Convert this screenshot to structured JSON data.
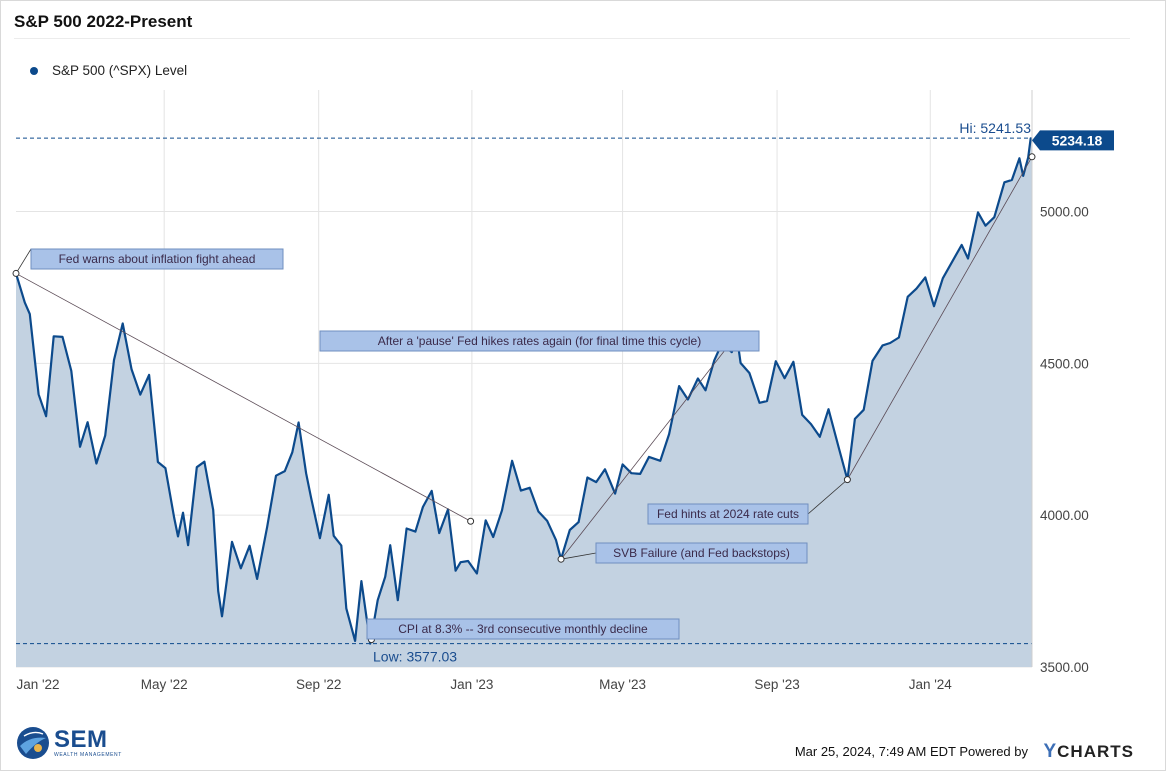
{
  "header": {
    "title": "S&P 500 2022-Present"
  },
  "legend": {
    "label": "S&P 500 (^SPX) Level",
    "color": "#0c4a8c"
  },
  "footer": {
    "timestamp": "Mar 25, 2024, 7:49 AM EDT Powered by",
    "brand_y": "Y",
    "brand_rest": "CHARTS"
  },
  "logo": {
    "name": "SEM",
    "tagline": "WEALTH MANAGEMENT"
  },
  "chart_data": {
    "type": "area",
    "x_start": "2022-01-03",
    "x_end": "2024-03-22",
    "ylim": [
      3500,
      5400
    ],
    "y_ticks": [
      3500,
      4000,
      4500,
      5000
    ],
    "y_tick_labels": [
      "3500.00",
      "4000.00",
      "4500.00",
      "5000.00"
    ],
    "x_ticks": [
      {
        "date": "2022-01-01",
        "label": "Jan '22"
      },
      {
        "date": "2022-05-01",
        "label": "May '22"
      },
      {
        "date": "2022-09-01",
        "label": "Sep '22"
      },
      {
        "date": "2023-01-01",
        "label": "Jan '23"
      },
      {
        "date": "2023-05-01",
        "label": "May '23"
      },
      {
        "date": "2023-09-01",
        "label": "Sep '23"
      },
      {
        "date": "2024-01-01",
        "label": "Jan '24"
      }
    ],
    "grid": true,
    "line_color": "#0c4a8c",
    "fill_color": "#c3d2e1",
    "series": [
      {
        "name": "S&P 500 (^SPX) Level",
        "points": [
          [
            "2022-01-03",
            4796
          ],
          [
            "2022-01-10",
            4700
          ],
          [
            "2022-01-14",
            4662
          ],
          [
            "2022-01-21",
            4398
          ],
          [
            "2022-01-27",
            4326
          ],
          [
            "2022-02-02",
            4589
          ],
          [
            "2022-02-09",
            4587
          ],
          [
            "2022-02-16",
            4475
          ],
          [
            "2022-02-23",
            4225
          ],
          [
            "2022-03-01",
            4306
          ],
          [
            "2022-03-08",
            4170
          ],
          [
            "2022-03-15",
            4262
          ],
          [
            "2022-03-22",
            4511
          ],
          [
            "2022-03-29",
            4631
          ],
          [
            "2022-04-05",
            4481
          ],
          [
            "2022-04-12",
            4397
          ],
          [
            "2022-04-19",
            4462
          ],
          [
            "2022-04-26",
            4175
          ],
          [
            "2022-05-02",
            4155
          ],
          [
            "2022-05-09",
            3991
          ],
          [
            "2022-05-12",
            3930
          ],
          [
            "2022-05-16",
            4008
          ],
          [
            "2022-05-20",
            3901
          ],
          [
            "2022-05-27",
            4158
          ],
          [
            "2022-06-02",
            4176
          ],
          [
            "2022-06-09",
            4017
          ],
          [
            "2022-06-13",
            3750
          ],
          [
            "2022-06-16",
            3667
          ],
          [
            "2022-06-24",
            3912
          ],
          [
            "2022-07-01",
            3825
          ],
          [
            "2022-07-08",
            3899
          ],
          [
            "2022-07-14",
            3790
          ],
          [
            "2022-07-22",
            3962
          ],
          [
            "2022-07-29",
            4130
          ],
          [
            "2022-08-05",
            4145
          ],
          [
            "2022-08-11",
            4207
          ],
          [
            "2022-08-16",
            4305
          ],
          [
            "2022-08-22",
            4138
          ],
          [
            "2022-08-26",
            4057
          ],
          [
            "2022-09-02",
            3924
          ],
          [
            "2022-09-09",
            4067
          ],
          [
            "2022-09-13",
            3932
          ],
          [
            "2022-09-19",
            3900
          ],
          [
            "2022-09-23",
            3693
          ],
          [
            "2022-09-30",
            3586
          ],
          [
            "2022-10-05",
            3783
          ],
          [
            "2022-10-12",
            3577
          ],
          [
            "2022-10-18",
            3720
          ],
          [
            "2022-10-24",
            3797
          ],
          [
            "2022-10-28",
            3901
          ],
          [
            "2022-11-03",
            3720
          ],
          [
            "2022-11-10",
            3956
          ],
          [
            "2022-11-17",
            3946
          ],
          [
            "2022-11-23",
            4027
          ],
          [
            "2022-11-30",
            4080
          ],
          [
            "2022-12-06",
            3941
          ],
          [
            "2022-12-13",
            4019
          ],
          [
            "2022-12-19",
            3817
          ],
          [
            "2022-12-23",
            3845
          ],
          [
            "2022-12-29",
            3849
          ],
          [
            "2023-01-05",
            3808
          ],
          [
            "2023-01-12",
            3983
          ],
          [
            "2023-01-18",
            3928
          ],
          [
            "2023-01-25",
            4016
          ],
          [
            "2023-02-02",
            4179
          ],
          [
            "2023-02-09",
            4081
          ],
          [
            "2023-02-16",
            4090
          ],
          [
            "2023-02-23",
            4012
          ],
          [
            "2023-03-02",
            3981
          ],
          [
            "2023-03-09",
            3918
          ],
          [
            "2023-03-13",
            3855
          ],
          [
            "2023-03-20",
            3951
          ],
          [
            "2023-03-27",
            3977
          ],
          [
            "2023-04-03",
            4124
          ],
          [
            "2023-04-10",
            4109
          ],
          [
            "2023-04-17",
            4151
          ],
          [
            "2023-04-25",
            4071
          ],
          [
            "2023-05-01",
            4167
          ],
          [
            "2023-05-08",
            4138
          ],
          [
            "2023-05-15",
            4136
          ],
          [
            "2023-05-22",
            4192
          ],
          [
            "2023-05-31",
            4179
          ],
          [
            "2023-06-07",
            4267
          ],
          [
            "2023-06-15",
            4425
          ],
          [
            "2023-06-22",
            4381
          ],
          [
            "2023-06-30",
            4450
          ],
          [
            "2023-07-06",
            4411
          ],
          [
            "2023-07-13",
            4510
          ],
          [
            "2023-07-19",
            4565
          ],
          [
            "2023-07-27",
            4537
          ],
          [
            "2023-07-31",
            4589
          ],
          [
            "2023-08-03",
            4501
          ],
          [
            "2023-08-10",
            4468
          ],
          [
            "2023-08-18",
            4370
          ],
          [
            "2023-08-24",
            4376
          ],
          [
            "2023-08-31",
            4507
          ],
          [
            "2023-09-07",
            4451
          ],
          [
            "2023-09-14",
            4505
          ],
          [
            "2023-09-21",
            4330
          ],
          [
            "2023-09-28",
            4300
          ],
          [
            "2023-10-05",
            4258
          ],
          [
            "2023-10-12",
            4349
          ],
          [
            "2023-10-20",
            4224
          ],
          [
            "2023-10-27",
            4117
          ],
          [
            "2023-11-02",
            4317
          ],
          [
            "2023-11-09",
            4347
          ],
          [
            "2023-11-16",
            4508
          ],
          [
            "2023-11-24",
            4559
          ],
          [
            "2023-11-30",
            4567
          ],
          [
            "2023-12-07",
            4585
          ],
          [
            "2023-12-14",
            4719
          ],
          [
            "2023-12-21",
            4746
          ],
          [
            "2023-12-28",
            4783
          ],
          [
            "2024-01-04",
            4688
          ],
          [
            "2024-01-11",
            4780
          ],
          [
            "2024-01-19",
            4839
          ],
          [
            "2024-01-26",
            4890
          ],
          [
            "2024-01-31",
            4845
          ],
          [
            "2024-02-08",
            4997
          ],
          [
            "2024-02-14",
            4953
          ],
          [
            "2024-02-21",
            4981
          ],
          [
            "2024-02-29",
            5096
          ],
          [
            "2024-03-06",
            5104
          ],
          [
            "2024-03-12",
            5175
          ],
          [
            "2024-03-15",
            5117
          ],
          [
            "2024-03-19",
            5178
          ],
          [
            "2024-03-21",
            5241
          ],
          [
            "2024-03-22",
            5234
          ]
        ]
      }
    ],
    "hi": {
      "label": "Hi: 5241.53",
      "value": 5241.53
    },
    "low": {
      "label": "Low: 3577.03",
      "value": 3577.03
    },
    "last": {
      "label": "5234.18",
      "value": 5234.18
    },
    "annotations": [
      {
        "text": "Fed warns about inflation fight ahead",
        "date": "2022-01-03",
        "value": 4796,
        "side": "right"
      },
      {
        "text": "After a 'pause' Fed hikes rates again (for final time this cycle)",
        "date": "2023-07-26",
        "value": 4567,
        "side": "left"
      },
      {
        "text": "Fed hints at 2024 rate cuts",
        "date": "2023-10-27",
        "value": 4117,
        "side": "left"
      },
      {
        "text": "SVB Failure (and Fed backstops)",
        "date": "2023-03-13",
        "value": 3855,
        "side": "right"
      },
      {
        "text": "CPI at 8.3% -- 3rd consecutive monthly decline",
        "date": "2022-10-13",
        "value": 3590,
        "side": "right"
      }
    ],
    "trend_lines": [
      {
        "from": [
          "2022-01-03",
          4796
        ],
        "to": [
          "2022-12-31",
          3980
        ]
      },
      {
        "from": [
          "2023-03-13",
          3855
        ],
        "to": [
          "2023-07-26",
          4567
        ]
      },
      {
        "from": [
          "2023-10-27",
          4117
        ],
        "to": [
          "2024-03-22",
          5180
        ]
      }
    ]
  }
}
